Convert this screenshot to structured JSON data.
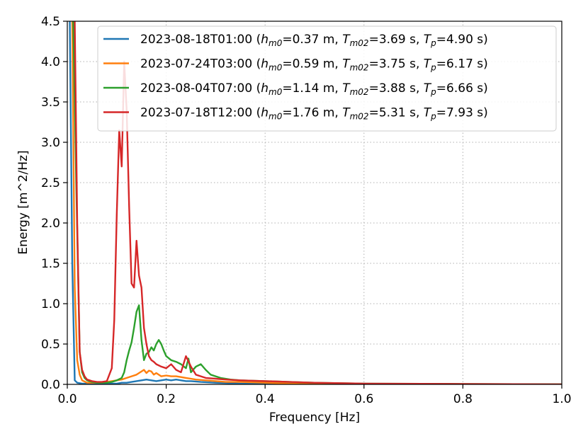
{
  "chart_data": {
    "type": "line",
    "xlabel": "Frequency [Hz]",
    "ylabel": "Energy [m^2/Hz]",
    "xlim": [
      0,
      1.0
    ],
    "ylim": [
      0,
      4.5
    ],
    "xticks": [
      "0.0",
      "0.2",
      "0.4",
      "0.6",
      "0.8",
      "1.0"
    ],
    "yticks": [
      "0.0",
      "0.5",
      "1.0",
      "1.5",
      "2.0",
      "2.5",
      "3.0",
      "3.5",
      "4.0",
      "4.5"
    ],
    "grid": true,
    "legend_position": "top-right",
    "series": [
      {
        "name": "2023-08-18T01:00",
        "hm0": "0.37 m",
        "tm02": "3.69 s",
        "tp": "4.90 s",
        "color": "#1f77b4",
        "x": [
          0.005,
          0.01,
          0.015,
          0.02,
          0.03,
          0.04,
          0.05,
          0.06,
          0.07,
          0.08,
          0.09,
          0.1,
          0.11,
          0.12,
          0.13,
          0.14,
          0.15,
          0.16,
          0.17,
          0.18,
          0.19,
          0.2,
          0.21,
          0.22,
          0.23,
          0.24,
          0.25,
          0.27,
          0.3,
          0.35,
          0.4,
          0.5,
          0.6,
          0.8,
          1.0
        ],
        "y": [
          4.5,
          1.5,
          0.05,
          0.02,
          0.01,
          0.01,
          0.01,
          0.01,
          0.01,
          0.01,
          0.01,
          0.01,
          0.02,
          0.02,
          0.03,
          0.04,
          0.05,
          0.06,
          0.05,
          0.04,
          0.05,
          0.06,
          0.05,
          0.06,
          0.05,
          0.04,
          0.04,
          0.03,
          0.02,
          0.01,
          0.01,
          0.005,
          0.003,
          0.002,
          0.0
        ]
      },
      {
        "name": "2023-07-24T03:00",
        "hm0": "0.59 m",
        "tm02": "3.75 s",
        "tp": "6.17 s",
        "color": "#ff7f0e",
        "x": [
          0.01,
          0.015,
          0.02,
          0.025,
          0.03,
          0.04,
          0.05,
          0.06,
          0.07,
          0.08,
          0.09,
          0.1,
          0.11,
          0.12,
          0.13,
          0.14,
          0.15,
          0.155,
          0.16,
          0.165,
          0.17,
          0.175,
          0.18,
          0.19,
          0.2,
          0.21,
          0.22,
          0.23,
          0.24,
          0.25,
          0.26,
          0.28,
          0.3,
          0.32,
          0.35,
          0.4,
          0.45,
          0.5,
          0.6,
          0.8,
          1.0
        ],
        "y": [
          4.5,
          1.2,
          0.3,
          0.12,
          0.05,
          0.02,
          0.02,
          0.02,
          0.02,
          0.03,
          0.04,
          0.05,
          0.06,
          0.08,
          0.1,
          0.12,
          0.16,
          0.18,
          0.14,
          0.17,
          0.16,
          0.12,
          0.14,
          0.1,
          0.11,
          0.1,
          0.1,
          0.09,
          0.08,
          0.07,
          0.06,
          0.05,
          0.04,
          0.03,
          0.03,
          0.02,
          0.01,
          0.01,
          0.005,
          0.002,
          0.0
        ]
      },
      {
        "name": "2023-08-04T07:00",
        "hm0": "1.14 m",
        "tm02": "3.88 s",
        "tp": "6.66 s",
        "color": "#2ca02c",
        "x": [
          0.012,
          0.018,
          0.025,
          0.03,
          0.035,
          0.04,
          0.05,
          0.06,
          0.07,
          0.08,
          0.09,
          0.1,
          0.11,
          0.115,
          0.12,
          0.125,
          0.13,
          0.135,
          0.14,
          0.145,
          0.15,
          0.155,
          0.16,
          0.165,
          0.17,
          0.175,
          0.18,
          0.185,
          0.19,
          0.195,
          0.2,
          0.21,
          0.22,
          0.23,
          0.24,
          0.245,
          0.25,
          0.26,
          0.27,
          0.28,
          0.29,
          0.3,
          0.31,
          0.32,
          0.33,
          0.35,
          0.4,
          0.45,
          0.5,
          0.6,
          0.8,
          1.0
        ],
        "y": [
          4.5,
          2.5,
          0.4,
          0.15,
          0.08,
          0.05,
          0.03,
          0.02,
          0.02,
          0.02,
          0.03,
          0.05,
          0.08,
          0.15,
          0.3,
          0.42,
          0.52,
          0.7,
          0.9,
          0.98,
          0.55,
          0.3,
          0.38,
          0.4,
          0.46,
          0.42,
          0.5,
          0.55,
          0.5,
          0.42,
          0.35,
          0.3,
          0.28,
          0.25,
          0.2,
          0.32,
          0.15,
          0.22,
          0.25,
          0.18,
          0.12,
          0.1,
          0.08,
          0.07,
          0.06,
          0.05,
          0.04,
          0.03,
          0.02,
          0.01,
          0.005,
          0.0
        ]
      },
      {
        "name": "2023-07-18T12:00",
        "hm0": "1.76 m",
        "tm02": "5.31 s",
        "tp": "7.93 s",
        "color": "#d62728",
        "x": [
          0.015,
          0.02,
          0.025,
          0.03,
          0.035,
          0.04,
          0.05,
          0.06,
          0.07,
          0.08,
          0.09,
          0.095,
          0.1,
          0.105,
          0.11,
          0.115,
          0.12,
          0.125,
          0.13,
          0.135,
          0.14,
          0.145,
          0.15,
          0.155,
          0.16,
          0.165,
          0.17,
          0.175,
          0.18,
          0.19,
          0.2,
          0.21,
          0.22,
          0.23,
          0.24,
          0.25,
          0.26,
          0.27,
          0.28,
          0.3,
          0.32,
          0.35,
          0.4,
          0.45,
          0.5,
          0.6,
          0.8,
          1.0
        ],
        "y": [
          4.5,
          2.0,
          0.4,
          0.18,
          0.1,
          0.06,
          0.04,
          0.03,
          0.03,
          0.04,
          0.2,
          0.8,
          2.1,
          3.15,
          2.7,
          4.0,
          3.4,
          2.2,
          1.25,
          1.2,
          1.78,
          1.35,
          1.2,
          0.7,
          0.5,
          0.35,
          0.3,
          0.28,
          0.25,
          0.22,
          0.2,
          0.25,
          0.18,
          0.15,
          0.35,
          0.22,
          0.12,
          0.1,
          0.08,
          0.07,
          0.06,
          0.05,
          0.04,
          0.03,
          0.02,
          0.01,
          0.005,
          0.0
        ]
      }
    ]
  }
}
